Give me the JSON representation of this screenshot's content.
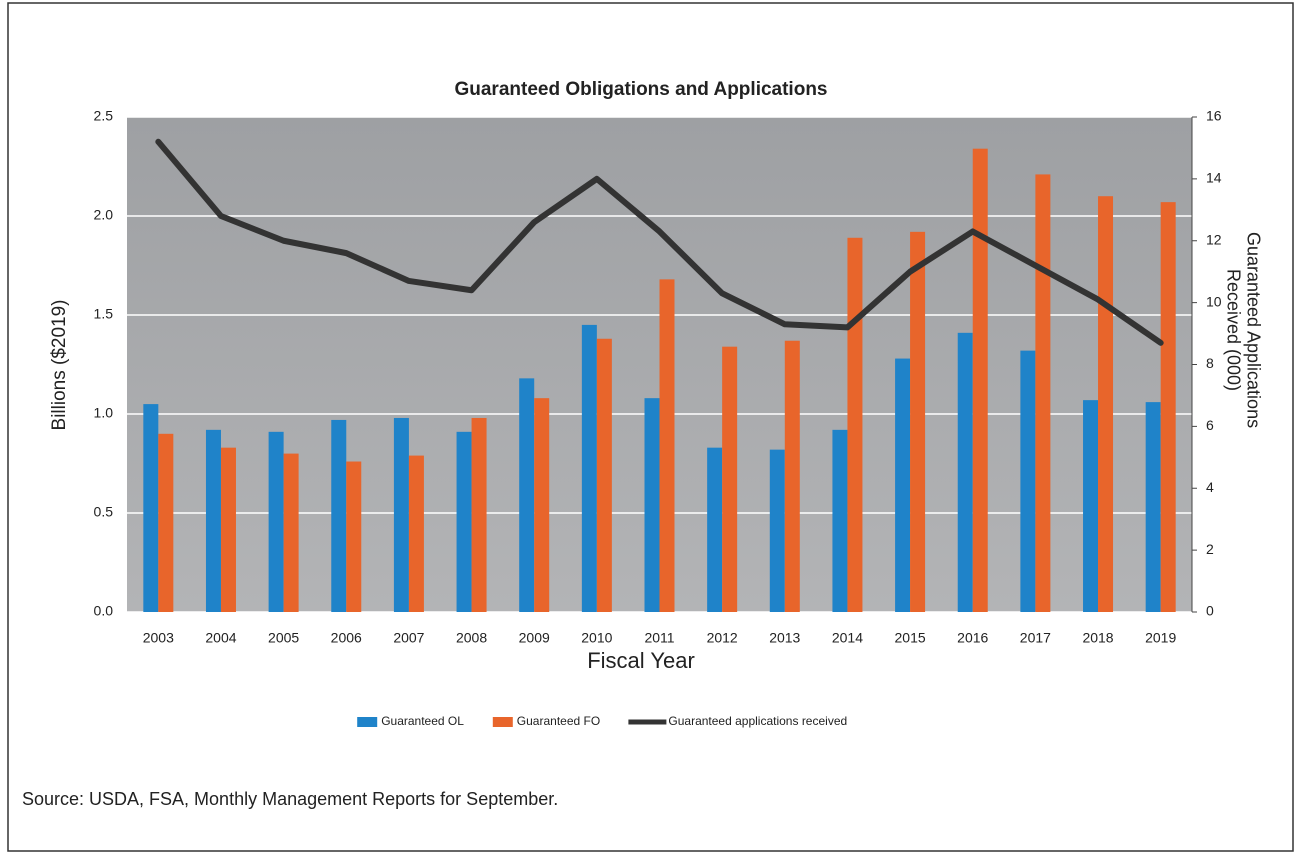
{
  "chart_data": {
    "type": "bar",
    "title": "Guaranteed Obligations and Applications",
    "xlabel": "Fiscal Year",
    "ylabel": "Billions ($2019)",
    "y2label": [
      "Guaranteed Applications",
      "Received (000)"
    ],
    "source": "Source:  USDA, FSA, Monthly Management Reports for September.",
    "categories": [
      "2003",
      "2004",
      "2005",
      "2006",
      "2007",
      "2008",
      "2009",
      "2010",
      "2011",
      "2012",
      "2013",
      "2014",
      "2015",
      "2016",
      "2017",
      "2018",
      "2019"
    ],
    "series": [
      {
        "name": "Guaranteed OL",
        "color": "#1f83c9",
        "values": [
          1.05,
          0.92,
          0.91,
          0.97,
          0.98,
          0.91,
          1.18,
          1.45,
          1.08,
          0.83,
          0.82,
          0.92,
          1.28,
          1.41,
          1.32,
          1.07,
          1.06
        ]
      },
      {
        "name": "Guaranteed FO",
        "color": "#e8652b",
        "values": [
          0.9,
          0.83,
          0.8,
          0.76,
          0.79,
          0.98,
          1.08,
          1.38,
          1.68,
          1.34,
          1.37,
          1.89,
          1.92,
          2.34,
          2.21,
          2.1,
          2.07
        ]
      },
      {
        "name": "Guaranteed applications received",
        "color": "#333333",
        "type": "line",
        "axis": "y2",
        "values": [
          15.2,
          12.8,
          12.0,
          11.6,
          10.7,
          10.4,
          12.6,
          14.0,
          12.3,
          10.3,
          9.3,
          9.2,
          11.0,
          12.3,
          11.2,
          10.1,
          8.7
        ]
      }
    ],
    "ylim": [
      0,
      2.5
    ],
    "yticks": [
      {
        "value": 0,
        "label": "0.0"
      },
      0.5,
      {
        "value": 1,
        "label": "1.0"
      },
      1.5,
      {
        "value": 2,
        "label": "2.0"
      },
      2.5
    ],
    "y2lim": [
      0,
      16
    ],
    "y2ticks": [
      0,
      2,
      4,
      6,
      8,
      10,
      12,
      14,
      16
    ],
    "grid": true,
    "legend": "bottom"
  }
}
